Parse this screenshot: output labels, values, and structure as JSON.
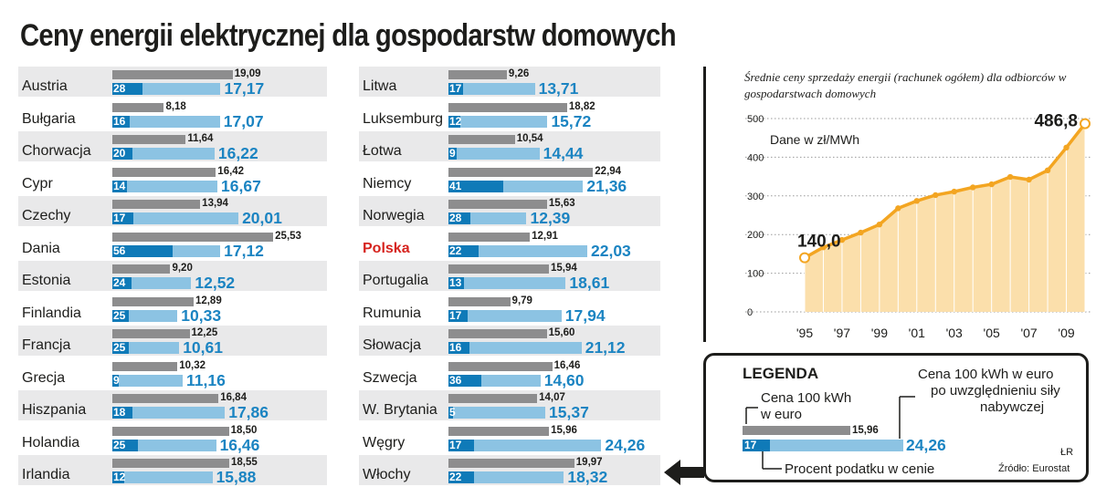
{
  "title": "Ceny energii elektrycznej dla gospodarstw domowych",
  "colors": {
    "eu_bar": "#8d8d8e",
    "ppp_bar": "#8cc3e3",
    "tax_bar": "#0f7ab8",
    "ppp_label": "#1b84c2",
    "line": "#f3a521",
    "area": "#fbdfab",
    "highlight": "#d6231e"
  },
  "chart_data": [
    {
      "type": "bar",
      "series": [
        {
          "name": "Cena 100 kWh w euro",
          "key": "eu"
        },
        {
          "name": "Cena 100 kWh w euro po uwzględnieniu siły nabywczej",
          "key": "ppp"
        },
        {
          "name": "Procent podatku w cenie",
          "key": "tax"
        }
      ],
      "columns": [
        [
          {
            "country": "Austria",
            "eu": 19.09,
            "eu_label": "19,09",
            "tax": 28,
            "tax_label": "28",
            "ppp": 17.17,
            "ppp_label": "17,17"
          },
          {
            "country": "Bułgaria",
            "eu": 8.18,
            "eu_label": "8,18",
            "tax": 16,
            "tax_label": "16",
            "ppp": 17.07,
            "ppp_label": "17,07"
          },
          {
            "country": "Chorwacja",
            "eu": 11.64,
            "eu_label": "11,64",
            "tax": 20,
            "tax_label": "20",
            "ppp": 16.22,
            "ppp_label": "16,22"
          },
          {
            "country": "Cypr",
            "eu": 16.42,
            "eu_label": "16,42",
            "tax": 14,
            "tax_label": "14",
            "ppp": 16.67,
            "ppp_label": "16,67"
          },
          {
            "country": "Czechy",
            "eu": 13.94,
            "eu_label": "13,94",
            "tax": 17,
            "tax_label": "17",
            "ppp": 20.01,
            "ppp_label": "20,01"
          },
          {
            "country": "Dania",
            "eu": 25.53,
            "eu_label": "25,53",
            "tax": 56,
            "tax_label": "56",
            "ppp": 17.12,
            "ppp_label": "17,12"
          },
          {
            "country": "Estonia",
            "eu": 9.2,
            "eu_label": "9,20",
            "tax": 24,
            "tax_label": "24",
            "ppp": 12.52,
            "ppp_label": "12,52"
          },
          {
            "country": "Finlandia",
            "eu": 12.89,
            "eu_label": "12,89",
            "tax": 25,
            "tax_label": "25",
            "ppp": 10.33,
            "ppp_label": "10,33"
          },
          {
            "country": "Francja",
            "eu": 12.25,
            "eu_label": "12,25",
            "tax": 25,
            "tax_label": "25",
            "ppp": 10.61,
            "ppp_label": "10,61"
          },
          {
            "country": "Grecja",
            "eu": 10.32,
            "eu_label": "10,32",
            "tax": 9,
            "tax_label": "9",
            "ppp": 11.16,
            "ppp_label": "11,16"
          },
          {
            "country": "Hiszpania",
            "eu": 16.84,
            "eu_label": "16,84",
            "tax": 18,
            "tax_label": "18",
            "ppp": 17.86,
            "ppp_label": "17,86"
          },
          {
            "country": "Holandia",
            "eu": 18.5,
            "eu_label": "18,50",
            "tax": 25,
            "tax_label": "25",
            "ppp": 16.46,
            "ppp_label": "16,46"
          },
          {
            "country": "Irlandia",
            "eu": 18.55,
            "eu_label": "18,55",
            "tax": 12,
            "tax_label": "12",
            "ppp": 15.88,
            "ppp_label": "15,88"
          }
        ],
        [
          {
            "country": "Litwa",
            "eu": 9.26,
            "eu_label": "9,26",
            "tax": 17,
            "tax_label": "17",
            "ppp": 13.71,
            "ppp_label": "13,71"
          },
          {
            "country": "Luksemburg",
            "eu": 18.82,
            "eu_label": "18,82",
            "tax": 12,
            "tax_label": "12",
            "ppp": 15.72,
            "ppp_label": "15,72"
          },
          {
            "country": "Łotwa",
            "eu": 10.54,
            "eu_label": "10,54",
            "tax": 9,
            "tax_label": "9",
            "ppp": 14.44,
            "ppp_label": "14,44"
          },
          {
            "country": "Niemcy",
            "eu": 22.94,
            "eu_label": "22,94",
            "tax": 41,
            "tax_label": "41",
            "ppp": 21.36,
            "ppp_label": "21,36"
          },
          {
            "country": "Norwegia",
            "eu": 15.63,
            "eu_label": "15,63",
            "tax": 28,
            "tax_label": "28",
            "ppp": 12.39,
            "ppp_label": "12,39"
          },
          {
            "country": "Polska",
            "highlight": true,
            "eu": 12.91,
            "eu_label": "12,91",
            "tax": 22,
            "tax_label": "22",
            "ppp": 22.03,
            "ppp_label": "22,03"
          },
          {
            "country": "Portugalia",
            "eu": 15.94,
            "eu_label": "15,94",
            "tax": 13,
            "tax_label": "13",
            "ppp": 18.61,
            "ppp_label": "18,61"
          },
          {
            "country": "Rumunia",
            "eu": 9.79,
            "eu_label": "9,79",
            "tax": 17,
            "tax_label": "17",
            "ppp": 17.94,
            "ppp_label": "17,94"
          },
          {
            "country": "Słowacja",
            "eu": 15.6,
            "eu_label": "15,60",
            "tax": 16,
            "tax_label": "16",
            "ppp": 21.12,
            "ppp_label": "21,12"
          },
          {
            "country": "Szwecja",
            "eu": 16.46,
            "eu_label": "16,46",
            "tax": 36,
            "tax_label": "36",
            "ppp": 14.6,
            "ppp_label": "14,60"
          },
          {
            "country": "W. Brytania",
            "eu": 14.07,
            "eu_label": "14,07",
            "tax": 5,
            "tax_label": "5",
            "ppp": 15.37,
            "ppp_label": "15,37"
          },
          {
            "country": "Węgry",
            "eu": 15.96,
            "eu_label": "15,96",
            "tax": 17,
            "tax_label": "17",
            "ppp": 24.26,
            "ppp_label": "24,26"
          },
          {
            "country": "Włochy",
            "eu": 19.97,
            "eu_label": "19,97",
            "tax": 22,
            "tax_label": "22",
            "ppp": 18.32,
            "ppp_label": "18,32"
          }
        ]
      ]
    },
    {
      "type": "area",
      "title": "Średnie ceny sprzedaży energii (rachunek ogółem) dla odbiorców w gospodarstwach domowych",
      "unit_label": "Dane w zł/MWh",
      "x": [
        1995,
        1996,
        1997,
        1998,
        1999,
        2000,
        2001,
        2002,
        2003,
        2004,
        2005,
        2006,
        2007,
        2008,
        2009,
        2010
      ],
      "x_tick_labels": [
        "'95",
        "'97",
        "'99",
        "'01",
        "'03",
        "'05",
        "'07",
        "'09"
      ],
      "x_tick_years": [
        1995,
        1997,
        1999,
        2001,
        2003,
        2005,
        2007,
        2009
      ],
      "values": [
        140.0,
        167,
        186,
        205,
        226,
        268,
        287,
        302,
        311,
        322,
        330,
        349,
        342,
        366,
        425,
        486.8
      ],
      "ylim": [
        0,
        500
      ],
      "y_ticks": [
        0,
        100,
        200,
        300,
        400,
        500
      ],
      "annotations": [
        {
          "index": 0,
          "text": "140,0"
        },
        {
          "index": 15,
          "text": "486,8"
        }
      ]
    }
  ],
  "legend": {
    "title": "LEGENDA",
    "eu_text_1": "Cena 100 kWh",
    "eu_text_2": "w euro",
    "ppp_text_1": "Cena 100 kWh w euro",
    "ppp_text_2": "po uwzględnieniu siły",
    "ppp_text_3": "nabywczej",
    "tax_text": "Procent podatku w cenie",
    "sample_eu": "15,96",
    "sample_tax": "17",
    "sample_ppp": "24,26",
    "credit": "ŁR",
    "source": "Źródło: Eurostat"
  }
}
